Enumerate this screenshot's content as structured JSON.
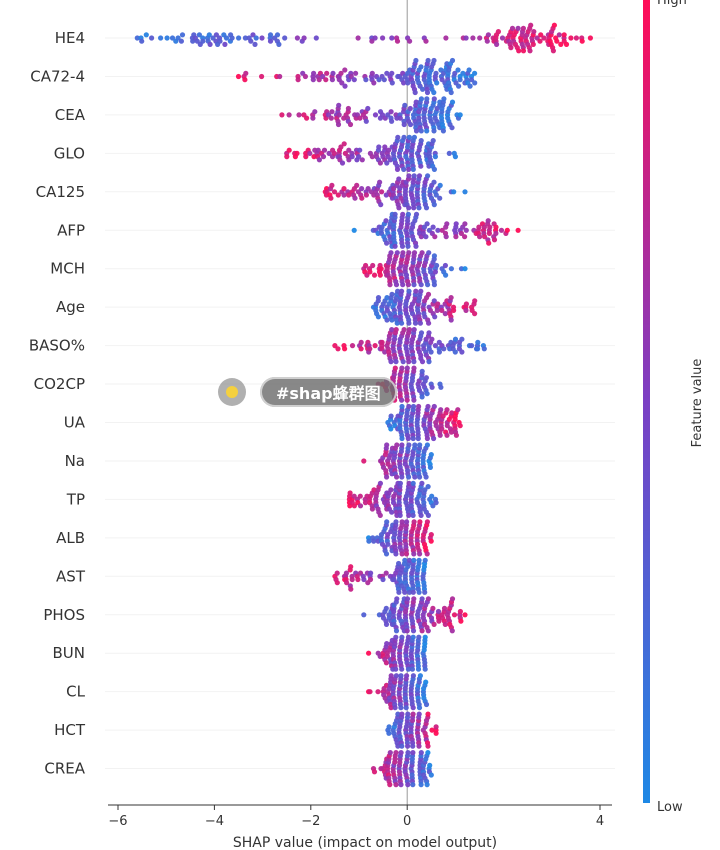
{
  "overlay": {
    "tag_text": "#shap蜂群图"
  },
  "chart_data": {
    "type": "scatter",
    "subtype": "shap-beeswarm",
    "xlabel": "SHAP value (impact on model output)",
    "xlim": [
      -6.1,
      4.3
    ],
    "xticks": [
      -6,
      -4,
      -2,
      0,
      4
    ],
    "xtick_labels": [
      "−6",
      "−4",
      "−2",
      "0",
      "4"
    ],
    "colorbar": {
      "title": "Feature value",
      "high_label": "High",
      "low_label": "Low",
      "low_color": "#1e88e5",
      "high_color": "#ff0d57"
    },
    "features": [
      {
        "name": "HE4",
        "min": -5.6,
        "max": 3.8,
        "clusters": [
          [
            -4.0,
            0.8,
            0.35
          ],
          [
            2.6,
            0.6,
            0.45
          ],
          [
            0.0,
            1.8,
            0.2
          ]
        ],
        "high_side": 1
      },
      {
        "name": "CA72-4",
        "min": -3.5,
        "max": 1.4,
        "clusters": [
          [
            0.5,
            0.4,
            0.7
          ],
          [
            -1.5,
            0.9,
            0.3
          ]
        ],
        "high_side": -1
      },
      {
        "name": "CEA",
        "min": -2.6,
        "max": 1.1,
        "clusters": [
          [
            0.4,
            0.3,
            0.7
          ],
          [
            -1.3,
            0.7,
            0.3
          ]
        ],
        "high_side": -1
      },
      {
        "name": "GLO",
        "min": -2.5,
        "max": 1.0,
        "clusters": [
          [
            0.0,
            0.35,
            0.75
          ],
          [
            -1.4,
            0.6,
            0.25
          ]
        ],
        "high_side": -1
      },
      {
        "name": "CA125",
        "min": -1.7,
        "max": 1.2,
        "clusters": [
          [
            0.2,
            0.3,
            0.75
          ],
          [
            -0.8,
            0.5,
            0.25
          ]
        ],
        "high_side": -1
      },
      {
        "name": "AFP",
        "min": -1.1,
        "max": 2.3,
        "clusters": [
          [
            -0.2,
            0.25,
            0.6
          ],
          [
            1.0,
            0.6,
            0.4
          ]
        ],
        "high_side": 1
      },
      {
        "name": "MCH",
        "min": -0.9,
        "max": 1.2,
        "clusters": [
          [
            0.0,
            0.35,
            1.0
          ]
        ],
        "high_side": -1
      },
      {
        "name": "Age",
        "min": -0.7,
        "max": 1.4,
        "clusters": [
          [
            0.0,
            0.3,
            0.8
          ],
          [
            0.9,
            0.35,
            0.2
          ]
        ],
        "high_side": 1
      },
      {
        "name": "BASO%",
        "min": -1.5,
        "max": 1.6,
        "clusters": [
          [
            0.0,
            0.4,
            0.8
          ],
          [
            -0.9,
            0.4,
            0.1
          ],
          [
            1.0,
            0.4,
            0.1
          ]
        ],
        "high_side": -1
      },
      {
        "name": "CO2CP",
        "min": -0.6,
        "max": 0.7,
        "clusters": [
          [
            0.0,
            0.2,
            1.0
          ]
        ],
        "high_side": -1
      },
      {
        "name": "UA",
        "min": -0.4,
        "max": 1.1,
        "clusters": [
          [
            0.1,
            0.25,
            0.8
          ],
          [
            0.8,
            0.2,
            0.2
          ]
        ],
        "high_side": 1
      },
      {
        "name": "Na",
        "min": -0.9,
        "max": 0.5,
        "clusters": [
          [
            0.0,
            0.3,
            1.0
          ]
        ],
        "high_side": -1
      },
      {
        "name": "TP",
        "min": -1.2,
        "max": 0.6,
        "clusters": [
          [
            0.0,
            0.3,
            0.8
          ],
          [
            -0.8,
            0.3,
            0.2
          ]
        ],
        "high_side": -1
      },
      {
        "name": "ALB",
        "min": -0.8,
        "max": 0.5,
        "clusters": [
          [
            0.0,
            0.3,
            1.0
          ]
        ],
        "high_side": 1
      },
      {
        "name": "AST",
        "min": -1.5,
        "max": 0.4,
        "clusters": [
          [
            0.1,
            0.2,
            0.8
          ],
          [
            -1.0,
            0.3,
            0.2
          ]
        ],
        "high_side": -1
      },
      {
        "name": "PHOS",
        "min": -0.9,
        "max": 1.2,
        "clusters": [
          [
            0.0,
            0.25,
            0.7
          ],
          [
            0.6,
            0.3,
            0.3
          ]
        ],
        "high_side": 1
      },
      {
        "name": "BUN",
        "min": -0.8,
        "max": 0.4,
        "clusters": [
          [
            0.0,
            0.25,
            1.0
          ]
        ],
        "high_side": -1
      },
      {
        "name": "CL",
        "min": -0.8,
        "max": 0.4,
        "clusters": [
          [
            0.0,
            0.25,
            1.0
          ]
        ],
        "high_side": -1
      },
      {
        "name": "HCT",
        "min": -0.4,
        "max": 0.6,
        "clusters": [
          [
            0.1,
            0.2,
            1.0
          ]
        ],
        "high_side": 1
      },
      {
        "name": "CREA",
        "min": -0.7,
        "max": 0.5,
        "clusters": [
          [
            0.0,
            0.25,
            1.0
          ]
        ],
        "high_side": -1
      }
    ]
  }
}
